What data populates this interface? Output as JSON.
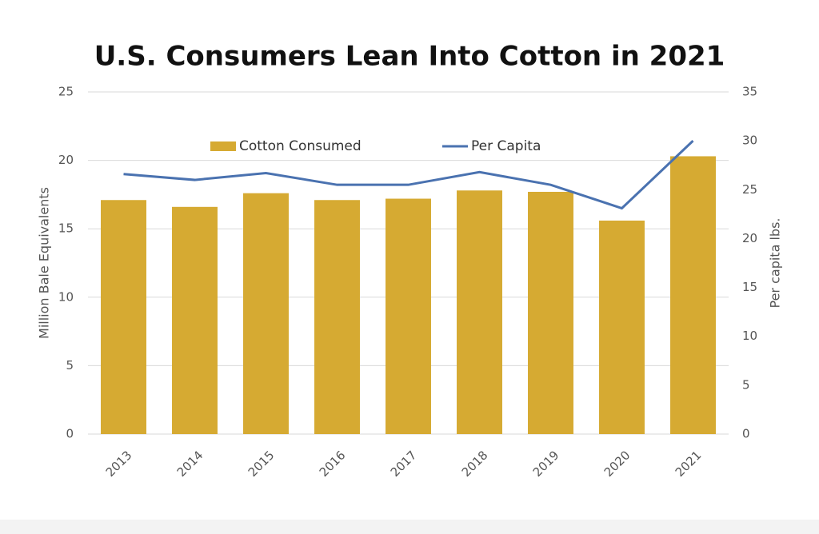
{
  "chart_data": {
    "type": "bar",
    "title": "U.S. Consumers Lean Into Cotton in 2021",
    "categories": [
      "2013",
      "2014",
      "2015",
      "2016",
      "2017",
      "2018",
      "2019",
      "2020",
      "2021"
    ],
    "series": [
      {
        "name": "Cotton Consumed",
        "type": "bar",
        "color": "#d6aa32",
        "values": [
          17.1,
          16.6,
          17.6,
          17.1,
          17.2,
          17.8,
          17.7,
          15.6,
          20.3
        ]
      },
      {
        "name": "Per Capita",
        "type": "line",
        "axis": "y2",
        "color": "#4a72b0",
        "values": [
          26.6,
          26.0,
          26.7,
          25.5,
          25.5,
          26.8,
          25.5,
          23.1,
          30.0
        ]
      }
    ],
    "ylabel": "Million Bale Equivalents",
    "y2label": "Per capita lbs.",
    "ylim": [
      0,
      25
    ],
    "yticks": [
      0,
      5,
      10,
      15,
      20,
      25
    ],
    "y2lim": [
      0,
      35
    ],
    "y2ticks": [
      0,
      5,
      10,
      15,
      20,
      25,
      30,
      35
    ],
    "grid": true,
    "legend": "top"
  }
}
